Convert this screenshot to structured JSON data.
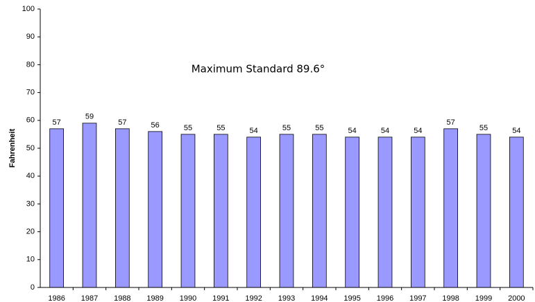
{
  "chart_data": {
    "type": "bar",
    "ylabel": "Fahrenheit",
    "annotation": "Maximum Standard 89.6°",
    "categories": [
      "1986",
      "1987",
      "1988",
      "1989",
      "1990",
      "1991",
      "1992",
      "1993",
      "1994",
      "1995",
      "1996",
      "1997",
      "1998",
      "1999",
      "2000"
    ],
    "values": [
      57,
      59,
      57,
      56,
      55,
      55,
      54,
      55,
      55,
      54,
      54,
      54,
      57,
      55,
      54
    ],
    "color": "#9999ff",
    "ylim": [
      0,
      100
    ],
    "yticks": [
      0,
      10,
      20,
      30,
      40,
      50,
      60,
      70,
      80,
      90,
      100
    ],
    "grid": false
  }
}
